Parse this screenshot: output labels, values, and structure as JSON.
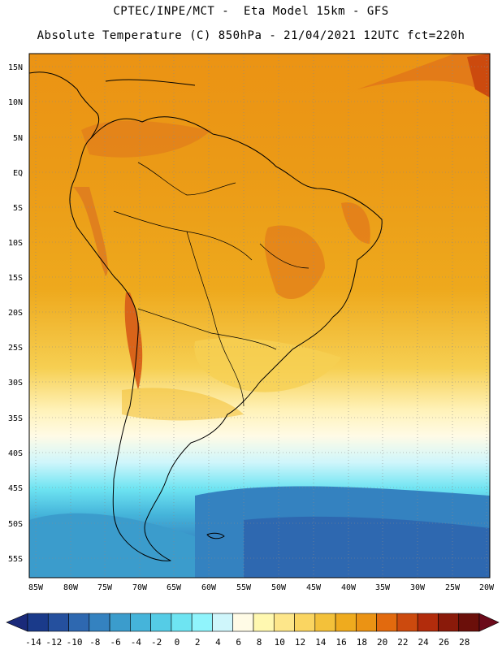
{
  "header": {
    "line1": "CPTEC/INPE/MCT -  Eta Model 15km - GFS",
    "line2": "Absolute Temperature (C) 850hPa - 21/04/2021 12UTC fct=220h"
  },
  "map": {
    "lat_labels": [
      "15N",
      "10N",
      "5N",
      "EQ",
      "5S",
      "10S",
      "15S",
      "20S",
      "25S",
      "30S",
      "35S",
      "40S",
      "45S",
      "50S",
      "55S"
    ],
    "lon_labels": [
      "85W",
      "80W",
      "75W",
      "70W",
      "65W",
      "60W",
      "55W",
      "50W",
      "45W",
      "40W",
      "35W",
      "30W",
      "25W",
      "20W"
    ]
  },
  "colorbar": {
    "labels": [
      "-14",
      "-12",
      "-10",
      "-8",
      "-6",
      "-4",
      "-2",
      "0",
      "2",
      "4",
      "6",
      "8",
      "10",
      "12",
      "14",
      "16",
      "18",
      "20",
      "22",
      "24",
      "26",
      "28"
    ],
    "colors": [
      "#1a3a8a",
      "#25509e",
      "#2e68b0",
      "#3482c0",
      "#3b9ccc",
      "#45b4da",
      "#55cce6",
      "#6ee4f2",
      "#90f4fc",
      "#cff6fb",
      "#fffbe6",
      "#fff8b0",
      "#fde68a",
      "#fad561",
      "#f3c13a",
      "#efab1e",
      "#eb9314",
      "#e26a0e",
      "#cc4a0e",
      "#b22c0c",
      "#8a1a0a",
      "#6b0f0a"
    ],
    "under_color": "#1a2a7a",
    "over_color": "#6b0a1a"
  }
}
